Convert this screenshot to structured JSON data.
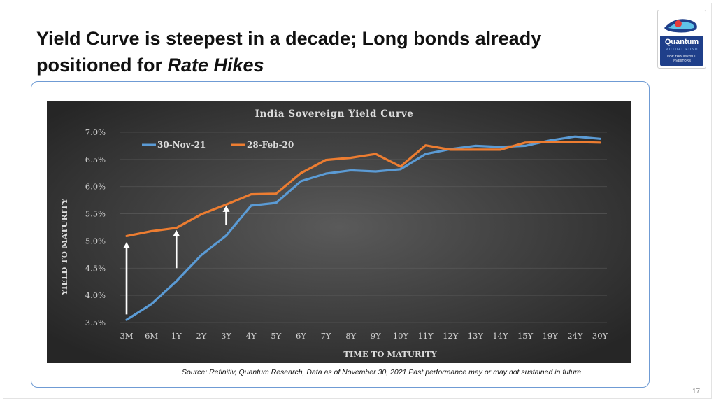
{
  "slide": {
    "title_line1": "Yield Curve is steepest in a decade; Long bonds already",
    "title_line2_plain": "positioned for ",
    "title_line2_emph": "Rate Hikes",
    "source": "Source: Refinitiv, Quantum Research, Data as of November 30, 2021 Past performance may or may not sustained in future",
    "page_number": "17"
  },
  "logo": {
    "brand": "Quantum",
    "sub": "MUTUAL FUND",
    "tagline_1": "FOR THOUGHTFUL",
    "tagline_2": "INVESTORS"
  },
  "colors": {
    "chart_bg_dark": "#262626",
    "chart_bg_light": "#5a5a5a",
    "series_nov": "#5b9bd5",
    "series_feb": "#ed7d31",
    "arrow": "#ffffff",
    "card_border": "#6f9bd4"
  },
  "chart_data": {
    "type": "line",
    "title": "India Sovereign Yield Curve",
    "xlabel": "TIME TO MATURITY",
    "ylabel": "YIELD TO MATURITY",
    "categories": [
      "3M",
      "6M",
      "1Y",
      "2Y",
      "3Y",
      "4Y",
      "5Y",
      "6Y",
      "7Y",
      "8Y",
      "9Y",
      "10Y",
      "11Y",
      "12Y",
      "13Y",
      "14Y",
      "15Y",
      "19Y",
      "24Y",
      "30Y"
    ],
    "ylim": [
      3.5,
      7.0
    ],
    "yticks": [
      "3.5%",
      "4.0%",
      "4.5%",
      "5.0%",
      "5.5%",
      "6.0%",
      "6.5%",
      "7.0%"
    ],
    "ytick_values": [
      3.5,
      4.0,
      4.5,
      5.0,
      5.5,
      6.0,
      6.5,
      7.0
    ],
    "grid": true,
    "legend": "top-left",
    "series": [
      {
        "name": "30-Nov-21",
        "values": [
          3.55,
          3.84,
          4.26,
          4.74,
          5.1,
          5.65,
          5.7,
          6.1,
          6.24,
          6.3,
          6.28,
          6.32,
          6.6,
          6.69,
          6.75,
          6.73,
          6.75,
          6.85,
          6.92,
          6.88
        ]
      },
      {
        "name": "28-Feb-20",
        "values": [
          5.09,
          5.18,
          5.24,
          5.49,
          5.67,
          5.86,
          5.87,
          6.25,
          6.49,
          6.53,
          6.6,
          6.37,
          6.76,
          6.68,
          6.68,
          6.68,
          6.81,
          6.82,
          6.82,
          6.81
        ]
      }
    ],
    "annotations": [
      {
        "type": "arrow-up",
        "category": "3M",
        "from": 3.65,
        "to": 4.98
      },
      {
        "type": "arrow-up",
        "category": "1Y",
        "from": 4.5,
        "to": 5.2
      },
      {
        "type": "arrow-up",
        "category": "3Y",
        "from": 5.3,
        "to": 5.65
      }
    ]
  }
}
